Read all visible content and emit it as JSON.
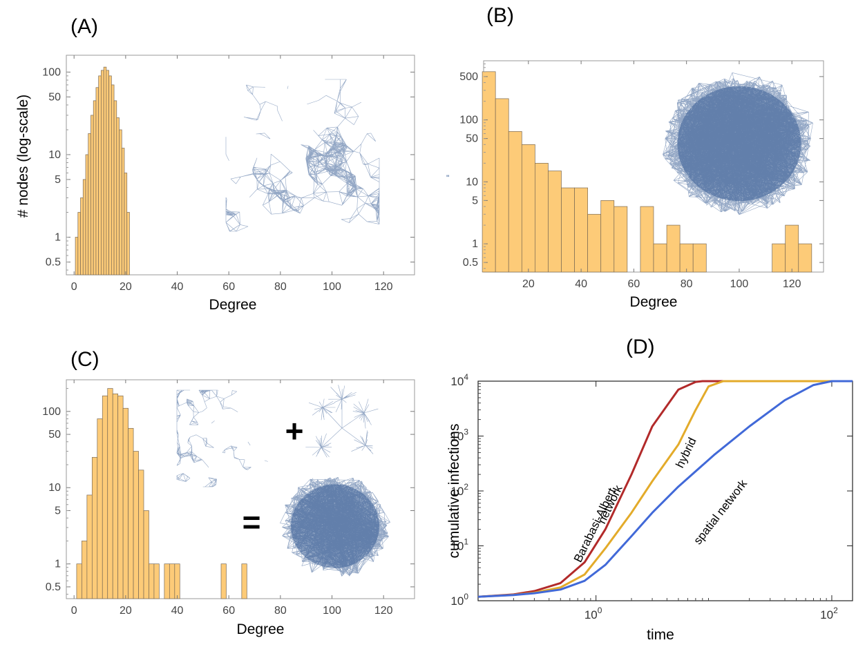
{
  "colors": {
    "bar_fill": "#fdcb78",
    "network_blue": "#3a5f95",
    "barabasi_albert": "#b22a2a",
    "hybrid": "#e3ab2a",
    "spatial": "#4169d8"
  },
  "panels": {
    "A": {
      "label": "(A)",
      "xlabel": "Degree",
      "ylabel": "# nodes (log-scale)",
      "x_ticks": [
        "0",
        "20",
        "40",
        "60",
        "80",
        "100",
        "120"
      ],
      "y_ticks": [
        "0.5",
        "1",
        "5",
        "10",
        "50",
        "100"
      ],
      "inset": "spatial-network-icon"
    },
    "B": {
      "label": "(B)",
      "xlabel": "Degree",
      "x_ticks": [
        "20",
        "40",
        "60",
        "80",
        "100",
        "120"
      ],
      "y_ticks": [
        "0.5",
        "1",
        "5",
        "10",
        "50",
        "100",
        "500"
      ],
      "stray_mark": "\"",
      "inset": "barabasi-albert-network-icon"
    },
    "C": {
      "label": "(C)",
      "xlabel": "Degree",
      "x_ticks": [
        "0",
        "20",
        "40",
        "60",
        "80",
        "100",
        "120"
      ],
      "y_ticks": [
        "0.5",
        "1",
        "5",
        "10",
        "50",
        "100"
      ],
      "plus": "+",
      "equals": "=",
      "insets": [
        "spatial-network-icon",
        "tree-network-icon",
        "hybrid-network-icon"
      ]
    },
    "D": {
      "label": "(D)",
      "xlabel": "time",
      "ylabel": "cumulative infections",
      "x_ticks": [
        {
          "base": "10",
          "exp": "0"
        },
        {
          "base": "10",
          "exp": "2"
        }
      ],
      "y_ticks": [
        {
          "base": "10",
          "exp": "0"
        },
        {
          "base": "10",
          "exp": "1"
        },
        {
          "base": "10",
          "exp": "2"
        },
        {
          "base": "10",
          "exp": "3"
        },
        {
          "base": "10",
          "exp": "4"
        }
      ],
      "annotations": {
        "ba_line1": "Barabasi-Albert",
        "ba_line2": "network",
        "hybrid": "hybrid",
        "spatial": "spatial network"
      }
    }
  },
  "chart_data": [
    {
      "type": "bar",
      "panel": "A",
      "title": "",
      "xlabel": "Degree",
      "ylabel": "# nodes (log-scale)",
      "y_scale": "log",
      "xlim": [
        -3,
        132
      ],
      "ylim": [
        0.35,
        160
      ],
      "bin_width": 1,
      "bins": [
        {
          "x": 1,
          "v": 1
        },
        {
          "x": 2,
          "v": 2
        },
        {
          "x": 3,
          "v": 3
        },
        {
          "x": 4,
          "v": 5
        },
        {
          "x": 5,
          "v": 10
        },
        {
          "x": 6,
          "v": 18
        },
        {
          "x": 7,
          "v": 30
        },
        {
          "x": 8,
          "v": 45
        },
        {
          "x": 9,
          "v": 65
        },
        {
          "x": 10,
          "v": 90
        },
        {
          "x": 11,
          "v": 105
        },
        {
          "x": 12,
          "v": 115
        },
        {
          "x": 13,
          "v": 105
        },
        {
          "x": 14,
          "v": 90
        },
        {
          "x": 15,
          "v": 70
        },
        {
          "x": 16,
          "v": 45
        },
        {
          "x": 17,
          "v": 28
        },
        {
          "x": 18,
          "v": 20
        },
        {
          "x": 19,
          "v": 12
        },
        {
          "x": 20,
          "v": 6
        },
        {
          "x": 21,
          "v": 2
        }
      ]
    },
    {
      "type": "bar",
      "panel": "B",
      "title": "",
      "xlabel": "Degree",
      "y_scale": "log",
      "xlim": [
        3,
        132
      ],
      "ylim": [
        0.35,
        900
      ],
      "bin_width": 5,
      "bins": [
        {
          "x": 5,
          "v": 600
        },
        {
          "x": 10,
          "v": 220
        },
        {
          "x": 15,
          "v": 65
        },
        {
          "x": 20,
          "v": 40
        },
        {
          "x": 25,
          "v": 20
        },
        {
          "x": 30,
          "v": 15
        },
        {
          "x": 35,
          "v": 8
        },
        {
          "x": 40,
          "v": 8
        },
        {
          "x": 45,
          "v": 3
        },
        {
          "x": 50,
          "v": 5
        },
        {
          "x": 55,
          "v": 4
        },
        {
          "x": 65,
          "v": 4
        },
        {
          "x": 70,
          "v": 1
        },
        {
          "x": 75,
          "v": 2
        },
        {
          "x": 80,
          "v": 1
        },
        {
          "x": 85,
          "v": 1
        },
        {
          "x": 115,
          "v": 1
        },
        {
          "x": 120,
          "v": 2
        },
        {
          "x": 125,
          "v": 1
        }
      ]
    },
    {
      "type": "bar",
      "panel": "C",
      "title": "",
      "xlabel": "Degree",
      "y_scale": "log",
      "xlim": [
        -3,
        132
      ],
      "ylim": [
        0.35,
        260
      ],
      "bin_width": 2,
      "bins": [
        {
          "x": 2,
          "v": 1
        },
        {
          "x": 4,
          "v": 2
        },
        {
          "x": 6,
          "v": 8
        },
        {
          "x": 8,
          "v": 25
        },
        {
          "x": 10,
          "v": 80
        },
        {
          "x": 12,
          "v": 160
        },
        {
          "x": 14,
          "v": 200
        },
        {
          "x": 16,
          "v": 170
        },
        {
          "x": 18,
          "v": 160
        },
        {
          "x": 20,
          "v": 110
        },
        {
          "x": 22,
          "v": 60
        },
        {
          "x": 24,
          "v": 30
        },
        {
          "x": 26,
          "v": 17
        },
        {
          "x": 28,
          "v": 5
        },
        {
          "x": 30,
          "v": 1
        },
        {
          "x": 32,
          "v": 1
        },
        {
          "x": 36,
          "v": 1
        },
        {
          "x": 38,
          "v": 1
        },
        {
          "x": 40,
          "v": 1
        },
        {
          "x": 58,
          "v": 1
        },
        {
          "x": 66,
          "v": 1
        }
      ]
    },
    {
      "type": "line",
      "panel": "D",
      "title": "",
      "xlabel": "time",
      "ylabel": "cumulative infections",
      "x_scale": "log",
      "y_scale": "log",
      "xlim": [
        0.1,
        150
      ],
      "ylim": [
        1,
        10000
      ],
      "series": [
        {
          "annotation": "Barabasi-Albert network",
          "x": [
            0.1,
            0.2,
            0.3,
            0.5,
            0.8,
            1.2,
            2,
            3,
            5,
            7,
            8,
            10,
            150
          ],
          "y": [
            1.18,
            1.3,
            1.5,
            2.1,
            5,
            20,
            200,
            1500,
            7000,
            9700,
            10000,
            10000,
            10000
          ]
        },
        {
          "annotation": "hybrid",
          "x": [
            0.1,
            0.2,
            0.3,
            0.5,
            0.8,
            1.2,
            2,
            3,
            5,
            7,
            9,
            12,
            15,
            150
          ],
          "y": [
            1.18,
            1.28,
            1.4,
            1.75,
            3,
            9,
            40,
            150,
            700,
            3000,
            8000,
            10000,
            10000,
            10000
          ]
        },
        {
          "annotation": "spatial network",
          "x": [
            0.1,
            0.2,
            0.3,
            0.5,
            0.8,
            1.2,
            2,
            3,
            5,
            10,
            20,
            40,
            70,
            100,
            150
          ],
          "y": [
            1.18,
            1.27,
            1.37,
            1.6,
            2.3,
            4.5,
            15,
            40,
            120,
            450,
            1500,
            4500,
            8500,
            10000,
            10000
          ]
        }
      ]
    }
  ]
}
